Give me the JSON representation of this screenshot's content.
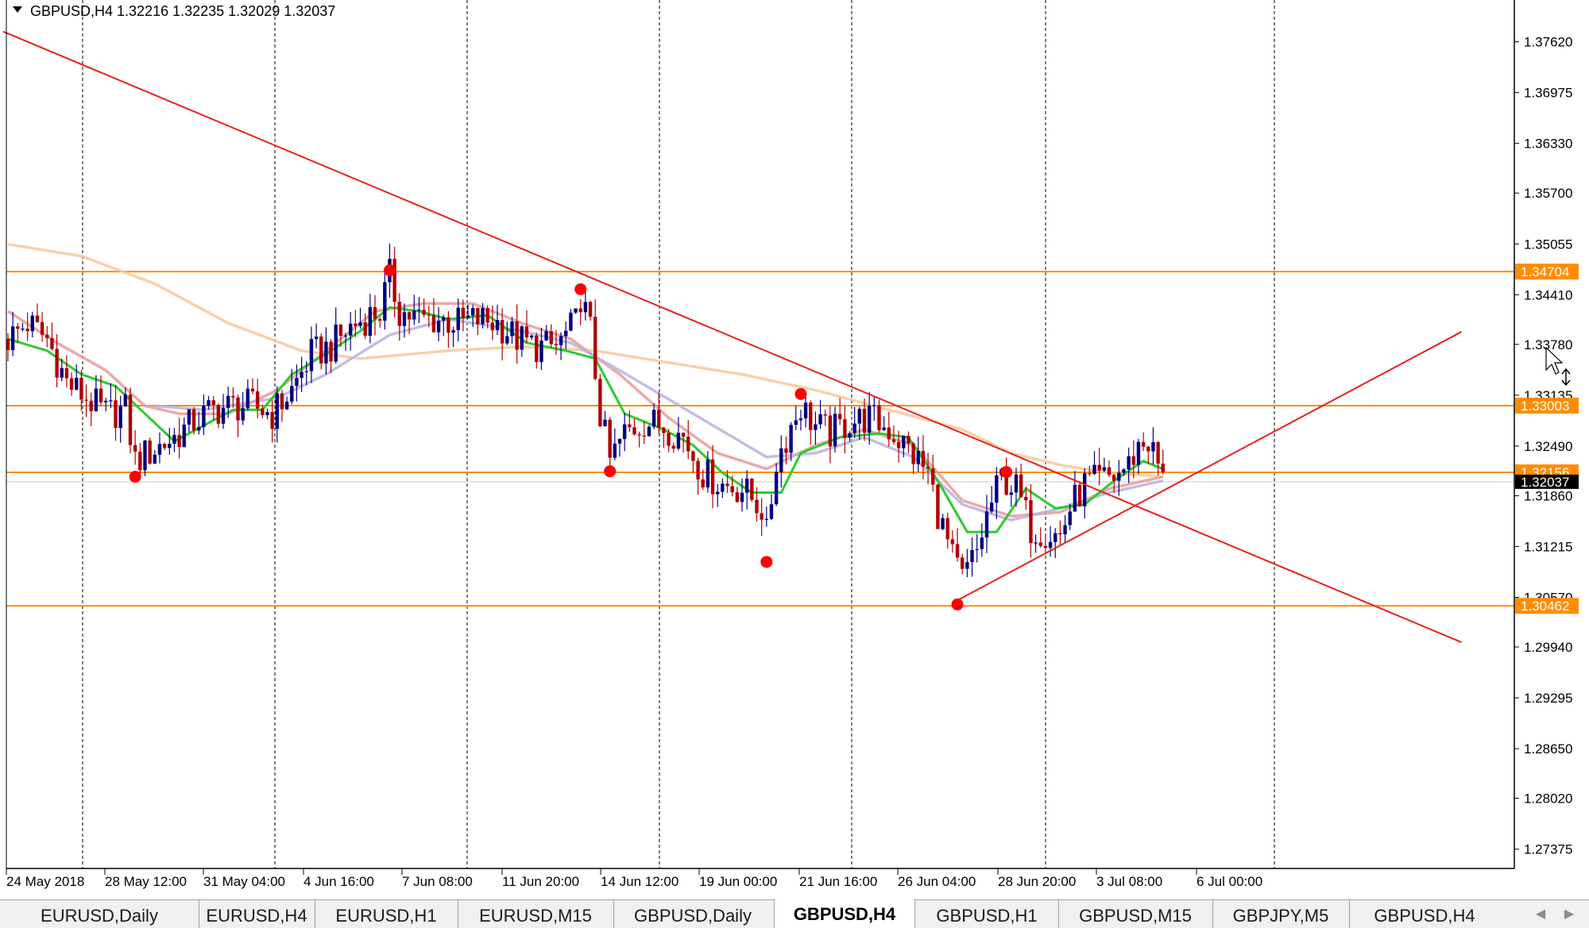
{
  "header": {
    "menu_icon": "triangle-down-icon",
    "title": "GBPUSD,H4  1.32216 1.32235 1.32029 1.32037"
  },
  "price_axis": {
    "labels": [
      "1.37620",
      "1.36975",
      "1.36330",
      "1.35700",
      "1.35055",
      "1.34410",
      "1.33780",
      "1.33135",
      "1.32490",
      "1.31860",
      "1.31215",
      "1.30570",
      "1.29940",
      "1.29295",
      "1.28650",
      "1.28020",
      "1.27375"
    ],
    "current_price": "1.32037",
    "level_tags": [
      "1.34704",
      "1.33003",
      "1.32156",
      "1.30462"
    ]
  },
  "time_axis": {
    "labels": [
      "24 May 2018",
      "28 May 12:00",
      "31 May 04:00",
      "4 Jun 16:00",
      "7 Jun 08:00",
      "11 Jun 20:00",
      "14 Jun 12:00",
      "19 Jun 00:00",
      "21 Jun 16:00",
      "26 Jun 04:00",
      "28 Jun 20:00",
      "3 Jul 08:00",
      "6 Jul 00:00"
    ]
  },
  "chart_data": {
    "type": "candlestick",
    "symbol": "GBPUSD",
    "timeframe": "H4",
    "ylim": [
      1.2713,
      1.3815
    ],
    "grid": "vertical-dashed",
    "horizontal_levels": [
      1.34704,
      1.33003,
      1.32156,
      1.30462
    ],
    "current_price": 1.32037,
    "trendlines": [
      {
        "from": [
          -1,
          1.3775
        ],
        "to": [
          297,
          1.3
        ],
        "color": "#e8201c"
      },
      {
        "from": [
          193,
          1.305
        ],
        "to": [
          297,
          1.3394
        ],
        "color": "#e8201c"
      }
    ],
    "swing_points": [
      {
        "bar": 26,
        "price": 1.321
      },
      {
        "bar": 78,
        "price": 1.3472
      },
      {
        "bar": 117,
        "price": 1.3448
      },
      {
        "bar": 123,
        "price": 1.3217
      },
      {
        "bar": 155,
        "price": 1.3102
      },
      {
        "bar": 162,
        "price": 1.3315
      },
      {
        "bar": 194,
        "price": 1.3048
      },
      {
        "bar": 204,
        "price": 1.3216
      }
    ],
    "moving_averages": [
      {
        "color": "#f7c89a",
        "points": [
          [
            0,
            1.3505
          ],
          [
            15,
            1.349
          ],
          [
            30,
            1.3455
          ],
          [
            45,
            1.3405
          ],
          [
            60,
            1.337
          ],
          [
            72,
            1.336
          ],
          [
            90,
            1.337
          ],
          [
            105,
            1.3375
          ],
          [
            120,
            1.337
          ],
          [
            135,
            1.3355
          ],
          [
            150,
            1.334
          ],
          [
            165,
            1.332
          ],
          [
            180,
            1.3295
          ],
          [
            195,
            1.327
          ],
          [
            205,
            1.324
          ],
          [
            215,
            1.3225
          ],
          [
            225,
            1.3215
          ],
          [
            236,
            1.321
          ]
        ]
      },
      {
        "color": "#e89a9a",
        "points": [
          [
            0,
            1.342
          ],
          [
            10,
            1.338
          ],
          [
            20,
            1.3345
          ],
          [
            28,
            1.33
          ],
          [
            35,
            1.329
          ],
          [
            45,
            1.329
          ],
          [
            55,
            1.332
          ],
          [
            65,
            1.337
          ],
          [
            75,
            1.342
          ],
          [
            85,
            1.343
          ],
          [
            95,
            1.343
          ],
          [
            105,
            1.3405
          ],
          [
            115,
            1.3385
          ],
          [
            125,
            1.334
          ],
          [
            135,
            1.3285
          ],
          [
            145,
            1.324
          ],
          [
            155,
            1.322
          ],
          [
            165,
            1.325
          ],
          [
            175,
            1.327
          ],
          [
            185,
            1.325
          ],
          [
            195,
            1.318
          ],
          [
            205,
            1.316
          ],
          [
            215,
            1.3165
          ],
          [
            225,
            1.3195
          ],
          [
            236,
            1.321
          ]
        ]
      },
      {
        "color": "#b9b2de",
        "points": [
          [
            30,
            1.33
          ],
          [
            40,
            1.3295
          ],
          [
            55,
            1.331
          ],
          [
            65,
            1.334
          ],
          [
            78,
            1.339
          ],
          [
            90,
            1.341
          ],
          [
            105,
            1.3395
          ],
          [
            115,
            1.338
          ],
          [
            125,
            1.3345
          ],
          [
            140,
            1.329
          ],
          [
            155,
            1.3235
          ],
          [
            165,
            1.324
          ],
          [
            175,
            1.326
          ],
          [
            185,
            1.3235
          ],
          [
            195,
            1.3175
          ],
          [
            205,
            1.3155
          ],
          [
            215,
            1.317
          ],
          [
            225,
            1.319
          ],
          [
            236,
            1.3205
          ]
        ]
      },
      {
        "color": "#2dcb2d",
        "points": [
          [
            0,
            1.3385
          ],
          [
            8,
            1.337
          ],
          [
            15,
            1.334
          ],
          [
            22,
            1.3325
          ],
          [
            28,
            1.329
          ],
          [
            34,
            1.3255
          ],
          [
            40,
            1.3275
          ],
          [
            46,
            1.3295
          ],
          [
            52,
            1.3295
          ],
          [
            58,
            1.334
          ],
          [
            66,
            1.337
          ],
          [
            72,
            1.3395
          ],
          [
            78,
            1.3425
          ],
          [
            84,
            1.342
          ],
          [
            90,
            1.341
          ],
          [
            98,
            1.3415
          ],
          [
            106,
            1.338
          ],
          [
            114,
            1.337
          ],
          [
            120,
            1.336
          ],
          [
            126,
            1.329
          ],
          [
            134,
            1.327
          ],
          [
            140,
            1.325
          ],
          [
            146,
            1.3215
          ],
          [
            152,
            1.319
          ],
          [
            158,
            1.319
          ],
          [
            162,
            1.324
          ],
          [
            170,
            1.326
          ],
          [
            178,
            1.3265
          ],
          [
            184,
            1.326
          ],
          [
            190,
            1.3205
          ],
          [
            196,
            1.314
          ],
          [
            202,
            1.314
          ],
          [
            208,
            1.3195
          ],
          [
            214,
            1.317
          ],
          [
            220,
            1.3175
          ],
          [
            226,
            1.3205
          ],
          [
            232,
            1.323
          ],
          [
            236,
            1.322
          ]
        ]
      }
    ],
    "candle_color_up": "#000080",
    "candle_color_down": "#b00000",
    "candle_path": [
      [
        0,
        1.3385
      ],
      [
        4,
        1.3405
      ],
      [
        8,
        1.3385
      ],
      [
        12,
        1.333
      ],
      [
        16,
        1.331
      ],
      [
        20,
        1.329
      ],
      [
        24,
        1.3295
      ],
      [
        26,
        1.323
      ],
      [
        30,
        1.3245
      ],
      [
        34,
        1.326
      ],
      [
        38,
        1.328
      ],
      [
        42,
        1.3295
      ],
      [
        46,
        1.33
      ],
      [
        50,
        1.33
      ],
      [
        54,
        1.329
      ],
      [
        58,
        1.332
      ],
      [
        62,
        1.3365
      ],
      [
        66,
        1.3375
      ],
      [
        70,
        1.34
      ],
      [
        74,
        1.3415
      ],
      [
        76,
        1.342
      ],
      [
        78,
        1.3465
      ],
      [
        80,
        1.342
      ],
      [
        84,
        1.341
      ],
      [
        88,
        1.341
      ],
      [
        92,
        1.3405
      ],
      [
        96,
        1.341
      ],
      [
        100,
        1.3405
      ],
      [
        104,
        1.3385
      ],
      [
        108,
        1.3375
      ],
      [
        112,
        1.3375
      ],
      [
        116,
        1.3405
      ],
      [
        117,
        1.344
      ],
      [
        119,
        1.3395
      ],
      [
        121,
        1.329
      ],
      [
        123,
        1.323
      ],
      [
        126,
        1.3265
      ],
      [
        130,
        1.328
      ],
      [
        134,
        1.3275
      ],
      [
        138,
        1.326
      ],
      [
        142,
        1.3215
      ],
      [
        146,
        1.32
      ],
      [
        150,
        1.3195
      ],
      [
        154,
        1.317
      ],
      [
        155,
        1.3135
      ],
      [
        157,
        1.323
      ],
      [
        160,
        1.3275
      ],
      [
        162,
        1.33
      ],
      [
        165,
        1.3275
      ],
      [
        168,
        1.3265
      ],
      [
        172,
        1.328
      ],
      [
        176,
        1.3285
      ],
      [
        180,
        1.327
      ],
      [
        184,
        1.3245
      ],
      [
        188,
        1.3215
      ],
      [
        190,
        1.3165
      ],
      [
        193,
        1.3105
      ],
      [
        195,
        1.308
      ],
      [
        198,
        1.3115
      ],
      [
        200,
        1.316
      ],
      [
        203,
        1.321
      ],
      [
        206,
        1.3195
      ],
      [
        209,
        1.3145
      ],
      [
        212,
        1.314
      ],
      [
        215,
        1.3135
      ],
      [
        217,
        1.317
      ],
      [
        220,
        1.32
      ],
      [
        223,
        1.3205
      ],
      [
        226,
        1.321
      ],
      [
        229,
        1.3225
      ],
      [
        231,
        1.325
      ],
      [
        233,
        1.3255
      ],
      [
        235,
        1.3225
      ],
      [
        236,
        1.3204
      ]
    ]
  },
  "tabs": [
    {
      "label": "EURUSD,Daily",
      "active": false
    },
    {
      "label": "EURUSD,H4",
      "active": false
    },
    {
      "label": "EURUSD,H1",
      "active": false
    },
    {
      "label": "EURUSD,M15",
      "active": false
    },
    {
      "label": "GBPUSD,Daily",
      "active": false
    },
    {
      "label": "GBPUSD,H4",
      "active": true
    },
    {
      "label": "GBPUSD,H1",
      "active": false
    },
    {
      "label": "GBPUSD,M15",
      "active": false
    },
    {
      "label": "GBPJPY,M5",
      "active": false
    },
    {
      "label": "GBPUSD,H4",
      "active": false
    }
  ],
  "tab_nav": {
    "left_icon": "arrow-left-icon",
    "right_icon": "arrow-right-icon"
  },
  "colors": {
    "level_line": "#ff8c00",
    "trendline": "#e8201c",
    "swing_point": "#ff0000",
    "current_price_tag": "#000000"
  }
}
